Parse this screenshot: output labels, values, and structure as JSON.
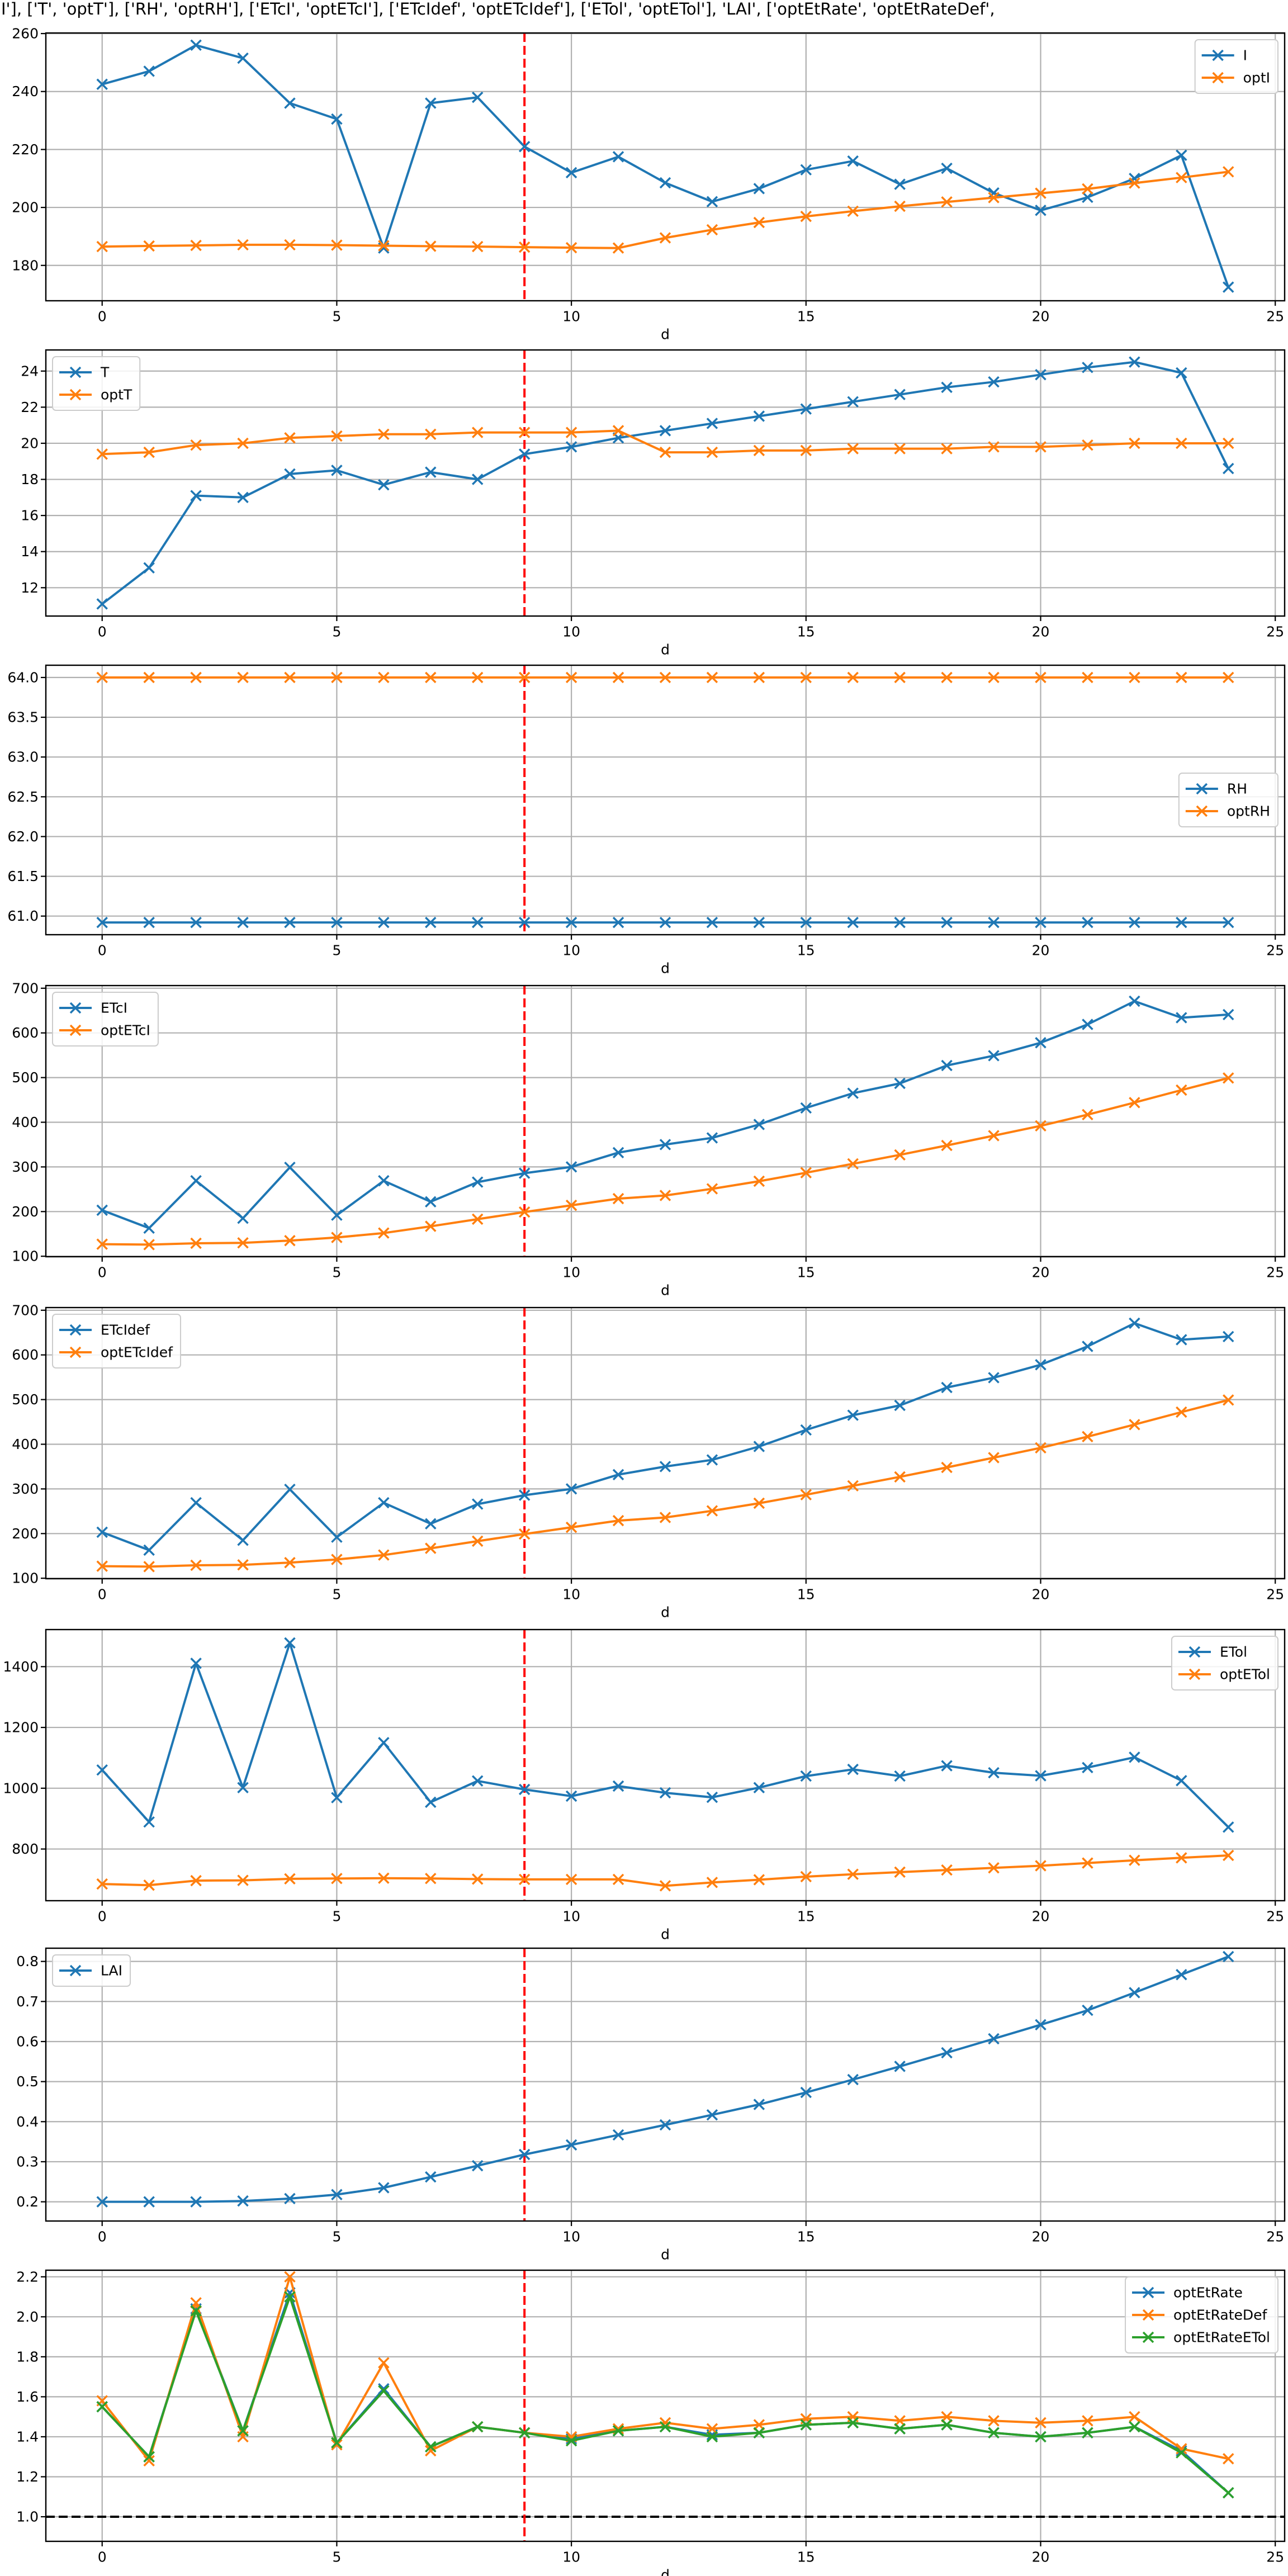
{
  "figure_title": "I'], ['T', 'optT'], ['RH', 'optRH'], ['ETcI', 'optETcI'], ['ETcIdef', 'optETcIdef'], ['ETol', 'optETol'], 'LAI', ['optEtRate', 'optEtRateDef',",
  "chart_data": [
    {
      "type": "line",
      "x": [
        0,
        1,
        2,
        3,
        4,
        5,
        6,
        7,
        8,
        9,
        10,
        11,
        12,
        13,
        14,
        15,
        16,
        17,
        18,
        19,
        20,
        21,
        22,
        23,
        24
      ],
      "series": [
        {
          "name": "I",
          "color": "#1f77b4",
          "marker": "x",
          "values": [
            242.5,
            247,
            256,
            251.5,
            236,
            230.5,
            186,
            236,
            238,
            221,
            212,
            217.5,
            208.5,
            202,
            206.5,
            213,
            216,
            208,
            213.5,
            205,
            199,
            203.5,
            210,
            218,
            172.5
          ]
        },
        {
          "name": "optI",
          "color": "#ff7f0e",
          "marker": "x",
          "values": [
            186.5,
            186.7,
            186.9,
            187.1,
            187.1,
            187,
            186.8,
            186.6,
            186.5,
            186.3,
            186.1,
            186,
            189.5,
            192.3,
            194.8,
            196.9,
            198.7,
            200.4,
            201.9,
            203.4,
            204.9,
            206.4,
            208.4,
            210.3,
            212.3
          ]
        }
      ],
      "xlabel": "d",
      "xlim": [
        -1.2,
        25.2
      ],
      "ylim": [
        167.8,
        260.2
      ],
      "xticks": [
        0,
        5,
        10,
        15,
        20,
        25
      ],
      "xticklabels": [
        "0",
        "5",
        "10",
        "15",
        "20",
        "25"
      ],
      "yticks": [
        180,
        200,
        220,
        240,
        260
      ],
      "yticklabels": [
        "180",
        "200",
        "220",
        "240",
        "260"
      ],
      "grid": true,
      "legend": "upper right",
      "vline": {
        "x": 9,
        "color": "#ff0000",
        "style": "dashed"
      }
    },
    {
      "type": "line",
      "x": [
        0,
        1,
        2,
        3,
        4,
        5,
        6,
        7,
        8,
        9,
        10,
        11,
        12,
        13,
        14,
        15,
        16,
        17,
        18,
        19,
        20,
        21,
        22,
        23,
        24
      ],
      "series": [
        {
          "name": "T",
          "color": "#1f77b4",
          "marker": "x",
          "values": [
            11.1,
            13.1,
            17.1,
            17.0,
            18.3,
            18.5,
            17.7,
            18.4,
            18.0,
            19.4,
            19.8,
            20.3,
            20.7,
            21.1,
            21.5,
            21.9,
            22.3,
            22.7,
            23.1,
            23.4,
            23.8,
            24.2,
            24.5,
            23.9,
            18.6
          ]
        },
        {
          "name": "optT",
          "color": "#ff7f0e",
          "marker": "x",
          "values": [
            19.4,
            19.5,
            19.9,
            20.0,
            20.3,
            20.4,
            20.5,
            20.5,
            20.6,
            20.6,
            20.6,
            20.7,
            19.5,
            19.5,
            19.6,
            19.6,
            19.7,
            19.7,
            19.7,
            19.8,
            19.8,
            19.9,
            20.0,
            20.0,
            20.0
          ]
        }
      ],
      "xlabel": "d",
      "xlim": [
        -1.2,
        25.2
      ],
      "ylim": [
        10.43,
        25.17
      ],
      "xticks": [
        0,
        5,
        10,
        15,
        20,
        25
      ],
      "xticklabels": [
        "0",
        "5",
        "10",
        "15",
        "20",
        "25"
      ],
      "yticks": [
        12,
        14,
        16,
        18,
        20,
        22,
        24
      ],
      "yticklabels": [
        "12",
        "14",
        "16",
        "18",
        "20",
        "22",
        "24"
      ],
      "grid": true,
      "legend": "upper left",
      "vline": {
        "x": 9,
        "color": "#ff0000",
        "style": "dashed"
      }
    },
    {
      "type": "line",
      "x": [
        0,
        1,
        2,
        3,
        4,
        5,
        6,
        7,
        8,
        9,
        10,
        11,
        12,
        13,
        14,
        15,
        16,
        17,
        18,
        19,
        20,
        21,
        22,
        23,
        24
      ],
      "series": [
        {
          "name": "RH",
          "color": "#1f77b4",
          "marker": "x",
          "values": [
            60.92,
            60.92,
            60.92,
            60.92,
            60.92,
            60.92,
            60.92,
            60.92,
            60.92,
            60.92,
            60.92,
            60.92,
            60.92,
            60.92,
            60.92,
            60.92,
            60.92,
            60.92,
            60.92,
            60.92,
            60.92,
            60.92,
            60.92,
            60.92,
            60.92
          ]
        },
        {
          "name": "optRH",
          "color": "#ff7f0e",
          "marker": "x",
          "values": [
            64.0,
            64.0,
            64.0,
            64.0,
            64.0,
            64.0,
            64.0,
            64.0,
            64.0,
            64.0,
            64.0,
            64.0,
            64.0,
            64.0,
            64.0,
            64.0,
            64.0,
            64.0,
            64.0,
            64.0,
            64.0,
            64.0,
            64.0,
            64.0,
            64.0
          ]
        }
      ],
      "xlabel": "d",
      "xlim": [
        -1.2,
        25.2
      ],
      "ylim": [
        60.766,
        64.154
      ],
      "xticks": [
        0,
        5,
        10,
        15,
        20,
        25
      ],
      "xticklabels": [
        "0",
        "5",
        "10",
        "15",
        "20",
        "25"
      ],
      "yticks": [
        61.0,
        61.5,
        62.0,
        62.5,
        63.0,
        63.5,
        64.0
      ],
      "yticklabels": [
        "61.0",
        "61.5",
        "62.0",
        "62.5",
        "63.0",
        "63.5",
        "64.0"
      ],
      "grid": true,
      "legend": "center right",
      "vline": {
        "x": 9,
        "color": "#ff0000",
        "style": "dashed"
      }
    },
    {
      "type": "line",
      "x": [
        0,
        1,
        2,
        3,
        4,
        5,
        6,
        7,
        8,
        9,
        10,
        11,
        12,
        13,
        14,
        15,
        16,
        17,
        18,
        19,
        20,
        21,
        22,
        23,
        24
      ],
      "series": [
        {
          "name": "ETcI",
          "color": "#1f77b4",
          "marker": "x",
          "values": [
            203,
            163,
            269,
            185,
            299,
            192,
            269,
            222,
            266,
            286,
            300,
            332,
            350,
            365,
            395,
            432,
            465,
            487,
            527,
            549,
            578,
            619,
            671,
            634,
            641
          ]
        },
        {
          "name": "optETcI",
          "color": "#ff7f0e",
          "marker": "x",
          "values": [
            127,
            126,
            129,
            130,
            135,
            142,
            152,
            167,
            183,
            199,
            214,
            229,
            236,
            251,
            268,
            287,
            307,
            327,
            348,
            370,
            392,
            417,
            444,
            472,
            499
          ]
        }
      ],
      "xlabel": "d",
      "xlim": [
        -1.2,
        25.2
      ],
      "ylim": [
        99,
        706
      ],
      "xticks": [
        0,
        5,
        10,
        15,
        20,
        25
      ],
      "xticklabels": [
        "0",
        "5",
        "10",
        "15",
        "20",
        "25"
      ],
      "yticks": [
        100,
        200,
        300,
        400,
        500,
        600,
        700
      ],
      "yticklabels": [
        "100",
        "200",
        "300",
        "400",
        "500",
        "600",
        "700"
      ],
      "grid": true,
      "legend": "upper left",
      "vline": {
        "x": 9,
        "color": "#ff0000",
        "style": "dashed"
      }
    },
    {
      "type": "line",
      "x": [
        0,
        1,
        2,
        3,
        4,
        5,
        6,
        7,
        8,
        9,
        10,
        11,
        12,
        13,
        14,
        15,
        16,
        17,
        18,
        19,
        20,
        21,
        22,
        23,
        24
      ],
      "series": [
        {
          "name": "ETcIdef",
          "color": "#1f77b4",
          "marker": "x",
          "values": [
            203,
            163,
            269,
            185,
            299,
            192,
            269,
            222,
            266,
            286,
            300,
            332,
            350,
            365,
            395,
            432,
            465,
            487,
            527,
            549,
            578,
            619,
            671,
            634,
            641
          ]
        },
        {
          "name": "optETcIdef",
          "color": "#ff7f0e",
          "marker": "x",
          "values": [
            127,
            126,
            129,
            130,
            135,
            142,
            152,
            167,
            183,
            199,
            214,
            229,
            236,
            251,
            268,
            287,
            307,
            327,
            348,
            370,
            392,
            417,
            444,
            472,
            499
          ]
        }
      ],
      "xlabel": "d",
      "xlim": [
        -1.2,
        25.2
      ],
      "ylim": [
        99,
        706
      ],
      "xticks": [
        0,
        5,
        10,
        15,
        20,
        25
      ],
      "xticklabels": [
        "0",
        "5",
        "10",
        "15",
        "20",
        "25"
      ],
      "yticks": [
        100,
        200,
        300,
        400,
        500,
        600,
        700
      ],
      "yticklabels": [
        "100",
        "200",
        "300",
        "400",
        "500",
        "600",
        "700"
      ],
      "grid": true,
      "legend": "upper left",
      "vline": {
        "x": 9,
        "color": "#ff0000",
        "style": "dashed"
      }
    },
    {
      "type": "line",
      "x": [
        0,
        1,
        2,
        3,
        4,
        5,
        6,
        7,
        8,
        9,
        10,
        11,
        12,
        13,
        14,
        15,
        16,
        17,
        18,
        19,
        20,
        21,
        22,
        23,
        24
      ],
      "series": [
        {
          "name": "ETol",
          "color": "#1f77b4",
          "marker": "x",
          "values": [
            1060,
            889,
            1411,
            1002,
            1478,
            969,
            1150,
            954,
            1024,
            996,
            974,
            1007,
            985,
            970,
            1002,
            1040,
            1062,
            1040,
            1074,
            1051,
            1041,
            1068,
            1102,
            1025,
            872
          ]
        },
        {
          "name": "optETol",
          "color": "#ff7f0e",
          "marker": "x",
          "values": [
            685,
            681,
            696,
            697,
            702,
            703,
            704,
            703,
            701,
            700,
            700,
            700,
            679,
            690,
            699,
            709,
            717,
            724,
            731,
            738,
            745,
            754,
            763,
            771,
            779
          ]
        }
      ],
      "xlabel": "d",
      "xlim": [
        -1.2,
        25.2
      ],
      "ylim": [
        630,
        1522
      ],
      "xticks": [
        0,
        5,
        10,
        15,
        20,
        25
      ],
      "xticklabels": [
        "0",
        "5",
        "10",
        "15",
        "20",
        "25"
      ],
      "yticks": [
        800,
        1000,
        1200,
        1400
      ],
      "yticklabels": [
        "800",
        "1000",
        "1200",
        "1400"
      ],
      "grid": true,
      "legend": "upper right",
      "vline": {
        "x": 9,
        "color": "#ff0000",
        "style": "dashed"
      }
    },
    {
      "type": "line",
      "x": [
        0,
        1,
        2,
        3,
        4,
        5,
        6,
        7,
        8,
        9,
        10,
        11,
        12,
        13,
        14,
        15,
        16,
        17,
        18,
        19,
        20,
        21,
        22,
        23,
        24
      ],
      "series": [
        {
          "name": "LAI",
          "color": "#1f77b4",
          "marker": "x",
          "values": [
            0.2,
            0.2,
            0.2,
            0.202,
            0.208,
            0.218,
            0.235,
            0.262,
            0.29,
            0.318,
            0.342,
            0.367,
            0.392,
            0.417,
            0.443,
            0.473,
            0.505,
            0.538,
            0.572,
            0.607,
            0.642,
            0.678,
            0.722,
            0.767,
            0.812
          ]
        }
      ],
      "xlabel": "d",
      "xlim": [
        -1.2,
        25.2
      ],
      "ylim": [
        0.152,
        0.833
      ],
      "xticks": [
        0,
        5,
        10,
        15,
        20,
        25
      ],
      "xticklabels": [
        "0",
        "5",
        "10",
        "15",
        "20",
        "25"
      ],
      "yticks": [
        0.2,
        0.3,
        0.4,
        0.5,
        0.6,
        0.7,
        0.8
      ],
      "yticklabels": [
        "0.2",
        "0.3",
        "0.4",
        "0.5",
        "0.6",
        "0.7",
        "0.8"
      ],
      "grid": true,
      "legend": "upper left",
      "vline": {
        "x": 9,
        "color": "#ff0000",
        "style": "dashed"
      }
    },
    {
      "type": "line",
      "x": [
        0,
        1,
        2,
        3,
        4,
        5,
        6,
        7,
        8,
        9,
        10,
        11,
        12,
        13,
        14,
        15,
        16,
        17,
        18,
        19,
        20,
        21,
        22,
        23,
        24
      ],
      "series": [
        {
          "name": "optEtRate",
          "color": "#1f77b4",
          "marker": "x",
          "values": [
            1.55,
            1.3,
            2.04,
            1.43,
            2.12,
            1.37,
            1.64,
            1.35,
            1.45,
            1.42,
            1.39,
            1.43,
            1.45,
            1.41,
            1.42,
            1.46,
            1.47,
            1.44,
            1.46,
            1.42,
            1.4,
            1.42,
            1.45,
            1.33,
            1.12
          ]
        },
        {
          "name": "optEtRateDef",
          "color": "#ff7f0e",
          "marker": "x",
          "values": [
            1.58,
            1.28,
            2.07,
            1.4,
            2.2,
            1.36,
            1.77,
            1.33,
            1.45,
            1.42,
            1.4,
            1.44,
            1.47,
            1.44,
            1.46,
            1.49,
            1.5,
            1.48,
            1.5,
            1.48,
            1.47,
            1.48,
            1.5,
            1.34,
            1.29
          ]
        },
        {
          "name": "optEtRateETol",
          "color": "#2ca02c",
          "marker": "x",
          "values": [
            1.55,
            1.3,
            2.03,
            1.43,
            2.1,
            1.37,
            1.63,
            1.35,
            1.45,
            1.42,
            1.38,
            1.43,
            1.45,
            1.4,
            1.42,
            1.46,
            1.47,
            1.44,
            1.46,
            1.42,
            1.4,
            1.42,
            1.45,
            1.32,
            1.12
          ]
        }
      ],
      "xlabel": "d",
      "xlim": [
        -1.2,
        25.2
      ],
      "ylim": [
        0.877,
        2.233
      ],
      "xticks": [
        0,
        5,
        10,
        15,
        20,
        25
      ],
      "xticklabels": [
        "0",
        "5",
        "10",
        "15",
        "20",
        "25"
      ],
      "yticks": [
        1.0,
        1.2,
        1.4,
        1.6,
        1.8,
        2.0,
        2.2
      ],
      "yticklabels": [
        "1.0",
        "1.2",
        "1.4",
        "1.6",
        "1.8",
        "2.0",
        "2.2"
      ],
      "grid": true,
      "legend": "upper right",
      "vline": {
        "x": 9,
        "color": "#ff0000",
        "style": "dashed"
      },
      "hline": {
        "y": 1.0,
        "color": "#000000",
        "style": "dashed"
      }
    }
  ]
}
